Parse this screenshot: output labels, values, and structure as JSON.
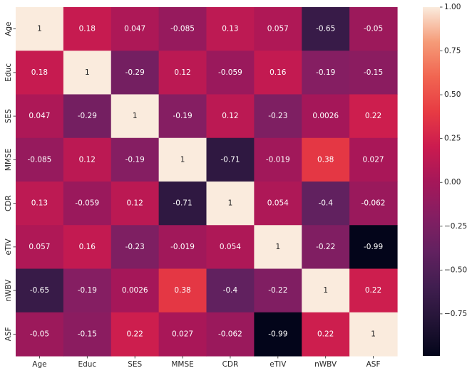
{
  "chart_data": {
    "type": "heatmap",
    "title": "",
    "xlabel": "",
    "ylabel": "",
    "row_labels": [
      "Age",
      "Educ",
      "SES",
      "MMSE",
      "CDR",
      "eTIV",
      "nWBV",
      "ASF"
    ],
    "col_labels": [
      "Age",
      "Educ",
      "SES",
      "MMSE",
      "CDR",
      "eTIV",
      "nWBV",
      "ASF"
    ],
    "values": [
      [
        1,
        0.18,
        0.047,
        -0.085,
        0.13,
        0.057,
        -0.65,
        -0.05
      ],
      [
        0.18,
        1,
        -0.29,
        0.12,
        -0.059,
        0.16,
        -0.19,
        -0.15
      ],
      [
        0.047,
        -0.29,
        1,
        -0.19,
        0.12,
        -0.23,
        0.0026,
        0.22
      ],
      [
        -0.085,
        0.12,
        -0.19,
        1,
        -0.71,
        -0.019,
        0.38,
        0.027
      ],
      [
        0.13,
        -0.059,
        0.12,
        -0.71,
        1,
        0.054,
        -0.4,
        -0.062
      ],
      [
        0.057,
        0.16,
        -0.23,
        -0.019,
        0.054,
        1,
        -0.22,
        -0.99
      ],
      [
        -0.65,
        -0.19,
        0.0026,
        0.38,
        -0.4,
        -0.22,
        1,
        0.22
      ],
      [
        -0.05,
        -0.15,
        0.22,
        0.027,
        -0.062,
        -0.99,
        0.22,
        1
      ]
    ],
    "annotations": [
      [
        "1",
        "0.18",
        "0.047",
        "-0.085",
        "0.13",
        "0.057",
        "-0.65",
        "-0.05"
      ],
      [
        "0.18",
        "1",
        "-0.29",
        "0.12",
        "-0.059",
        "0.16",
        "-0.19",
        "-0.15"
      ],
      [
        "0.047",
        "-0.29",
        "1",
        "-0.19",
        "0.12",
        "-0.23",
        "0.0026",
        "0.22"
      ],
      [
        "-0.085",
        "0.12",
        "-0.19",
        "1",
        "-0.71",
        "-0.019",
        "0.38",
        "0.027"
      ],
      [
        "0.13",
        "-0.059",
        "0.12",
        "-0.71",
        "1",
        "0.054",
        "-0.4",
        "-0.062"
      ],
      [
        "0.057",
        "0.16",
        "-0.23",
        "-0.019",
        "0.054",
        "1",
        "-0.22",
        "-0.99"
      ],
      [
        "-0.65",
        "-0.19",
        "0.0026",
        "0.38",
        "-0.4",
        "-0.22",
        "1",
        "0.22"
      ],
      [
        "-0.05",
        "-0.15",
        "0.22",
        "0.027",
        "-0.062",
        "-0.99",
        "0.22",
        "1"
      ]
    ],
    "vmin": -0.99,
    "vmax": 1.0,
    "colormap": "rocket",
    "colorbar": {
      "placement": "right",
      "ticks": [
        1.0,
        0.75,
        0.5,
        0.25,
        0.0,
        -0.25,
        -0.5,
        -0.75
      ],
      "tick_labels": [
        "1.00",
        "0.75",
        "0.50",
        "0.25",
        "0.00",
        "−0.25",
        "−0.50",
        "−0.75"
      ]
    },
    "grid": false,
    "annotation_text_colors": {
      "light": "#ffffff",
      "dark": "#262626"
    }
  }
}
